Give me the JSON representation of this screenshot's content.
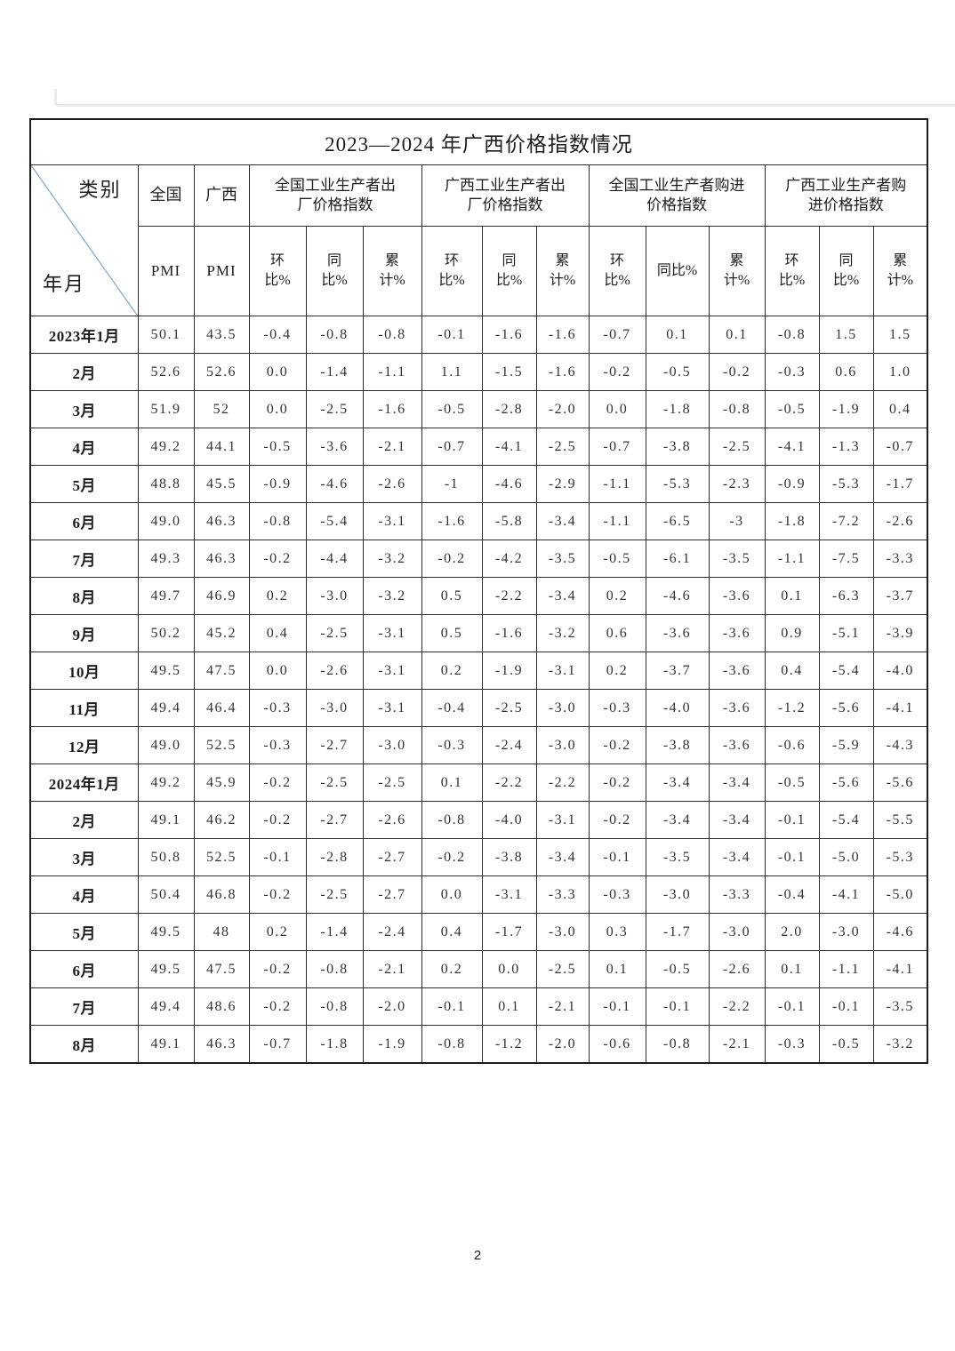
{
  "page": {
    "number": "2"
  },
  "colors": {
    "diagonal_line": "#79a3d3",
    "table_border": "#2b2b2b",
    "faint_edge": "#e9e9e9"
  },
  "table": {
    "title": "2023—2024 年广西价格指数情况",
    "corner": {
      "top_right": "类别",
      "bottom_left": "年月"
    },
    "header": {
      "national": {
        "label": "全国",
        "sub": "PMI"
      },
      "guangxi": {
        "label": "广西",
        "sub": "PMI"
      },
      "groups": [
        {
          "label": "全国工业生产者出\n厂价格指数",
          "subs": [
            "环\n比%",
            "同\n比%",
            "累\n计%"
          ]
        },
        {
          "label": "广西工业生产者出\n厂价格指数",
          "subs": [
            "环\n比%",
            "同\n比%",
            "累\n计%"
          ]
        },
        {
          "label": "全国工业生产者购进\n价格指数",
          "subs": [
            "环\n比%",
            "同比%",
            "累\n计%"
          ]
        },
        {
          "label": "广西工业生产者购\n进价格指数",
          "subs": [
            "环\n比%",
            "同\n比%",
            "累\n计%"
          ]
        }
      ]
    },
    "rows": [
      {
        "label": "2023年1月",
        "values": [
          "50.1",
          "43.5",
          "-0.4",
          "-0.8",
          "-0.8",
          "-0.1",
          "-1.6",
          "-1.6",
          "-0.7",
          "0.1",
          "0.1",
          "-0.8",
          "1.5",
          "1.5"
        ]
      },
      {
        "label": "2月",
        "values": [
          "52.6",
          "52.6",
          "0.0",
          "-1.4",
          "-1.1",
          "1.1",
          "-1.5",
          "-1.6",
          "-0.2",
          "-0.5",
          "-0.2",
          "-0.3",
          "0.6",
          "1.0"
        ]
      },
      {
        "label": "3月",
        "values": [
          "51.9",
          "52",
          "0.0",
          "-2.5",
          "-1.6",
          "-0.5",
          "-2.8",
          "-2.0",
          "0.0",
          "-1.8",
          "-0.8",
          "-0.5",
          "-1.9",
          "0.4"
        ]
      },
      {
        "label": "4月",
        "values": [
          "49.2",
          "44.1",
          "-0.5",
          "-3.6",
          "-2.1",
          "-0.7",
          "-4.1",
          "-2.5",
          "-0.7",
          "-3.8",
          "-2.5",
          "-4.1",
          "-1.3",
          "-0.7"
        ]
      },
      {
        "label": "5月",
        "values": [
          "48.8",
          "45.5",
          "-0.9",
          "-4.6",
          "-2.6",
          "-1",
          "-4.6",
          "-2.9",
          "-1.1",
          "-5.3",
          "-2.3",
          "-0.9",
          "-5.3",
          "-1.7"
        ]
      },
      {
        "label": "6月",
        "values": [
          "49.0",
          "46.3",
          "-0.8",
          "-5.4",
          "-3.1",
          "-1.6",
          "-5.8",
          "-3.4",
          "-1.1",
          "-6.5",
          "-3",
          "-1.8",
          "-7.2",
          "-2.6"
        ]
      },
      {
        "label": "7月",
        "values": [
          "49.3",
          "46.3",
          "-0.2",
          "-4.4",
          "-3.2",
          "-0.2",
          "-4.2",
          "-3.5",
          "-0.5",
          "-6.1",
          "-3.5",
          "-1.1",
          "-7.5",
          "-3.3"
        ]
      },
      {
        "label": "8月",
        "values": [
          "49.7",
          "46.9",
          "0.2",
          "-3.0",
          "-3.2",
          "0.5",
          "-2.2",
          "-3.4",
          "0.2",
          "-4.6",
          "-3.6",
          "0.1",
          "-6.3",
          "-3.7"
        ]
      },
      {
        "label": "9月",
        "values": [
          "50.2",
          "45.2",
          "0.4",
          "-2.5",
          "-3.1",
          "0.5",
          "-1.6",
          "-3.2",
          "0.6",
          "-3.6",
          "-3.6",
          "0.9",
          "-5.1",
          "-3.9"
        ]
      },
      {
        "label": "10月",
        "values": [
          "49.5",
          "47.5",
          "0.0",
          "-2.6",
          "-3.1",
          "0.2",
          "-1.9",
          "-3.1",
          "0.2",
          "-3.7",
          "-3.6",
          "0.4",
          "-5.4",
          "-4.0"
        ]
      },
      {
        "label": "11月",
        "values": [
          "49.4",
          "46.4",
          "-0.3",
          "-3.0",
          "-3.1",
          "-0.4",
          "-2.5",
          "-3.0",
          "-0.3",
          "-4.0",
          "-3.6",
          "-1.2",
          "-5.6",
          "-4.1"
        ]
      },
      {
        "label": "12月",
        "values": [
          "49.0",
          "52.5",
          "-0.3",
          "-2.7",
          "-3.0",
          "-0.3",
          "-2.4",
          "-3.0",
          "-0.2",
          "-3.8",
          "-3.6",
          "-0.6",
          "-5.9",
          "-4.3"
        ]
      },
      {
        "label": "2024年1月",
        "values": [
          "49.2",
          "45.9",
          "-0.2",
          "-2.5",
          "-2.5",
          "0.1",
          "-2.2",
          "-2.2",
          "-0.2",
          "-3.4",
          "-3.4",
          "-0.5",
          "-5.6",
          "-5.6"
        ]
      },
      {
        "label": "2月",
        "values": [
          "49.1",
          "46.2",
          "-0.2",
          "-2.7",
          "-2.6",
          "-0.8",
          "-4.0",
          "-3.1",
          "-0.2",
          "-3.4",
          "-3.4",
          "-0.1",
          "-5.4",
          "-5.5"
        ]
      },
      {
        "label": "3月",
        "values": [
          "50.8",
          "52.5",
          "-0.1",
          "-2.8",
          "-2.7",
          "-0.2",
          "-3.8",
          "-3.4",
          "-0.1",
          "-3.5",
          "-3.4",
          "-0.1",
          "-5.0",
          "-5.3"
        ]
      },
      {
        "label": "4月",
        "values": [
          "50.4",
          "46.8",
          "-0.2",
          "-2.5",
          "-2.7",
          "0.0",
          "-3.1",
          "-3.3",
          "-0.3",
          "-3.0",
          "-3.3",
          "-0.4",
          "-4.1",
          "-5.0"
        ]
      },
      {
        "label": "5月",
        "values": [
          "49.5",
          "48",
          "0.2",
          "-1.4",
          "-2.4",
          "0.4",
          "-1.7",
          "-3.0",
          "0.3",
          "-1.7",
          "-3.0",
          "2.0",
          "-3.0",
          "-4.6"
        ]
      },
      {
        "label": "6月",
        "values": [
          "49.5",
          "47.5",
          "-0.2",
          "-0.8",
          "-2.1",
          "0.2",
          "0.0",
          "-2.5",
          "0.1",
          "-0.5",
          "-2.6",
          "0.1",
          "-1.1",
          "-4.1"
        ]
      },
      {
        "label": "7月",
        "values": [
          "49.4",
          "48.6",
          "-0.2",
          "-0.8",
          "-2.0",
          "-0.1",
          "0.1",
          "-2.1",
          "-0.1",
          "-0.1",
          "-2.2",
          "-0.1",
          "-0.1",
          "-3.5"
        ]
      },
      {
        "label": "8月",
        "values": [
          "49.1",
          "46.3",
          "-0.7",
          "-1.8",
          "-1.9",
          "-0.8",
          "-1.2",
          "-2.0",
          "-0.6",
          "-0.8",
          "-2.1",
          "-0.3",
          "-0.5",
          "-3.2"
        ]
      }
    ]
  }
}
